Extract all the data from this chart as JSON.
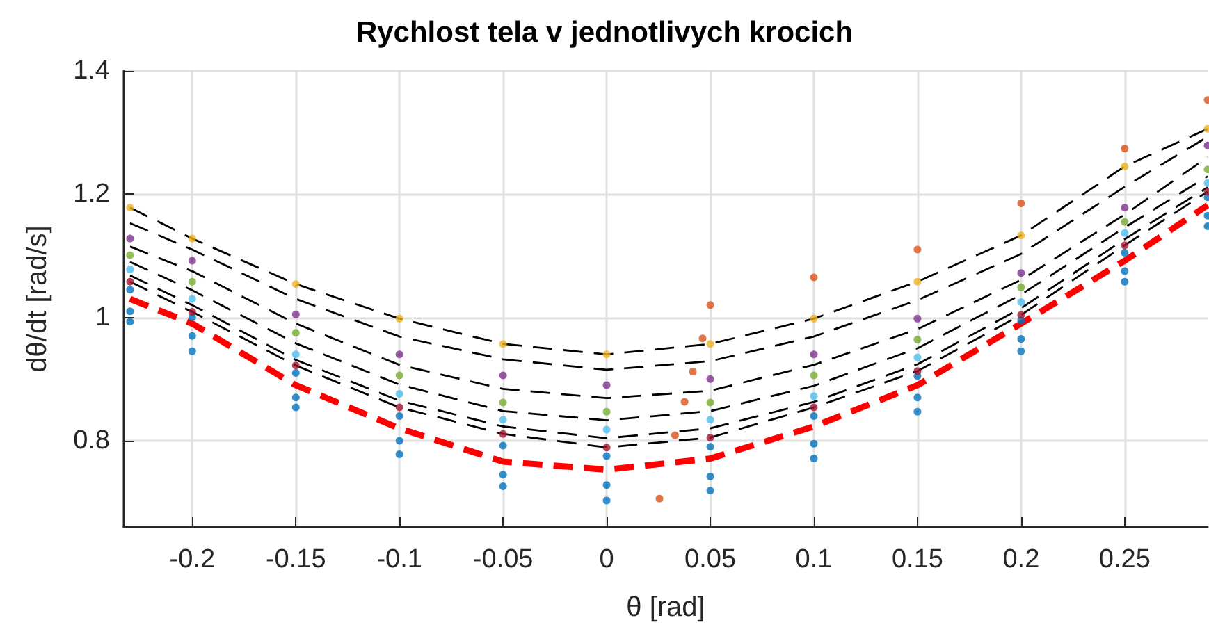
{
  "chart_data": {
    "type": "scatter",
    "title": "Rychlost tela v jednotlivych krocich",
    "xlabel": "θ [rad]",
    "ylabel": "dθ/dt [rad/s]",
    "x": [
      -0.23,
      -0.2,
      -0.15,
      -0.1,
      -0.05,
      0,
      0.05,
      0.1,
      0.15,
      0.2,
      0.25,
      0.29
    ],
    "xlim": [
      -0.233,
      0.29
    ],
    "xticks": [
      -0.2,
      -0.15,
      -0.1,
      -0.05,
      0,
      0.05,
      0.1,
      0.15,
      0.2,
      0.25
    ],
    "ylim": [
      0.66,
      1.4
    ],
    "yticks": [
      0.8,
      1,
      1.2,
      1.4
    ],
    "grid": true,
    "marker": "circle",
    "series": [
      {
        "color": "#0072bd",
        "values": [
          0.993,
          0.945,
          0.854,
          0.778,
          0.726,
          0.703,
          0.719,
          0.771,
          0.847,
          0.945,
          1.058,
          1.148
        ]
      },
      {
        "color": "#0072bd",
        "values": [
          1.01,
          0.97,
          0.87,
          0.8,
          0.745,
          0.728,
          0.742,
          0.795,
          0.87,
          0.965,
          1.075,
          1.165
        ]
      },
      {
        "color": "#0072bd",
        "values": [
          1.045,
          1.0,
          0.91,
          0.84,
          0.792,
          0.775,
          0.79,
          0.84,
          0.905,
          0.995,
          1.105,
          1.195
        ]
      },
      {
        "type": "line",
        "line_style": "dashed",
        "marker": "none",
        "color": "#ff0000",
        "values": [
          1.03,
          0.99,
          0.89,
          0.82,
          0.766,
          0.753,
          0.771,
          0.823,
          0.89,
          0.99,
          1.092,
          1.182
        ]
      },
      {
        "color": "#a2142f",
        "values": [
          1.058,
          1.009,
          0.922,
          0.854,
          0.811,
          0.789,
          0.805,
          0.854,
          0.913,
          1.004,
          1.117,
          1.204
        ]
      },
      {
        "color": "#4dbeee",
        "values": [
          1.078,
          1.03,
          0.94,
          0.876,
          0.834,
          0.818,
          0.834,
          0.872,
          0.935,
          1.025,
          1.137,
          1.218
        ]
      },
      {
        "color": "#77ac30",
        "values": [
          1.101,
          1.058,
          0.975,
          0.906,
          0.862,
          0.847,
          0.862,
          0.906,
          0.964,
          1.049,
          1.155,
          1.24
        ]
      },
      {
        "color": "#7e2f8e",
        "values": [
          1.128,
          1.092,
          1.005,
          0.94,
          0.906,
          0.89,
          0.9,
          0.94,
          0.998,
          1.072,
          1.178,
          1.279
        ]
      },
      {
        "color": "#edb120",
        "values": [
          1.178,
          1.128,
          1.054,
          0.998,
          0.957,
          0.94,
          0.957,
          0.998,
          1.058,
          1.133,
          1.245,
          1.306
        ]
      },
      {
        "color": "#d95319",
        "x": [
          0.0255,
          0.033,
          0.0376,
          0.0416,
          0.0463,
          0.05,
          0.1,
          0.15,
          0.2,
          0.25,
          0.29
        ],
        "values": [
          0.706,
          0.809,
          0.863,
          0.912,
          0.966,
          1.02,
          1.065,
          1.11,
          1.185,
          1.274,
          1.353
        ]
      },
      {
        "type": "line",
        "line_style": "dashed",
        "marker": "none",
        "color": "#000000",
        "values": [
          1.058,
          1.009,
          0.922,
          0.854,
          0.811,
          0.789,
          0.805,
          0.854,
          0.913,
          1.004,
          1.117,
          1.204
        ]
      },
      {
        "type": "line",
        "line_style": "dashed",
        "marker": "none",
        "color": "#000000",
        "values": [
          1.068,
          1.02,
          0.931,
          0.865,
          0.823,
          0.804,
          0.82,
          0.863,
          0.924,
          1.015,
          1.127,
          1.211
        ]
      },
      {
        "type": "line",
        "line_style": "dashed",
        "marker": "none",
        "color": "#000000",
        "values": [
          1.09,
          1.044,
          0.958,
          0.891,
          0.848,
          0.833,
          0.848,
          0.889,
          0.95,
          1.037,
          1.146,
          1.229
        ]
      },
      {
        "type": "line",
        "line_style": "dashed",
        "marker": "none",
        "color": "#000000",
        "values": [
          1.115,
          1.075,
          0.99,
          0.923,
          0.884,
          0.869,
          0.881,
          0.923,
          0.981,
          1.061,
          1.167,
          1.26
        ]
      },
      {
        "type": "line",
        "line_style": "dashed",
        "marker": "none",
        "color": "#000000",
        "values": [
          1.153,
          1.11,
          1.03,
          0.969,
          0.932,
          0.915,
          0.929,
          0.969,
          1.028,
          1.103,
          1.212,
          1.293
        ]
      },
      {
        "type": "line",
        "line_style": "dashed",
        "marker": "none",
        "color": "#000000",
        "values": [
          1.178,
          1.128,
          1.054,
          0.998,
          0.957,
          0.94,
          0.957,
          0.998,
          1.058,
          1.133,
          1.245,
          1.306
        ]
      }
    ]
  }
}
